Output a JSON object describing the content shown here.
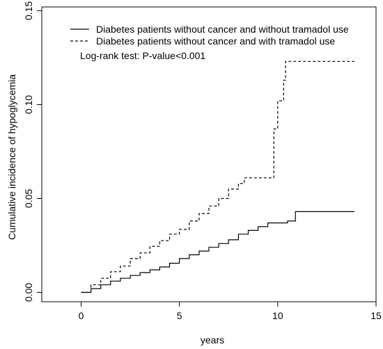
{
  "chart_data": {
    "type": "line",
    "xlabel": "years",
    "ylabel": "Cumulative incidence of hypoglycemia",
    "xlim": [
      -2,
      15
    ],
    "ylim": [
      -0.005,
      0.152
    ],
    "xticks": [
      0,
      5,
      10,
      15
    ],
    "yticks": [
      0.0,
      0.05,
      0.1,
      0.15
    ],
    "ytick_labels": [
      "0.00",
      "0.05",
      "0.10",
      "0.15"
    ],
    "grid": false,
    "legend_position": "top-left",
    "annotation": "Log-rank test: P-value<0.001",
    "series": [
      {
        "name": "Diabetes patients without cancer and without tramadol use",
        "style": "solid",
        "step": true,
        "x": [
          0,
          0.5,
          1,
          1.5,
          2,
          2.5,
          3,
          3.5,
          4,
          4.5,
          5,
          5.5,
          6,
          6.5,
          7,
          7.5,
          8,
          8.5,
          9,
          9.5,
          10,
          10.5,
          10.9,
          13.9
        ],
        "y": [
          0.0,
          0.002,
          0.004,
          0.006,
          0.0075,
          0.009,
          0.0105,
          0.012,
          0.0135,
          0.0155,
          0.018,
          0.02,
          0.022,
          0.024,
          0.026,
          0.028,
          0.031,
          0.033,
          0.035,
          0.037,
          0.037,
          0.038,
          0.043,
          0.043
        ]
      },
      {
        "name": "Diabetes patients without cancer and with tramadol use",
        "style": "dashed",
        "step": true,
        "x": [
          0,
          0.5,
          1,
          1.5,
          2,
          2.5,
          3,
          3.5,
          4,
          4.5,
          5,
          5.5,
          6,
          6.5,
          7,
          7.5,
          8,
          8.3,
          9,
          9.6,
          9.8,
          10,
          10.1,
          10.3,
          10.4,
          13.9
        ],
        "y": [
          0.0,
          0.004,
          0.0075,
          0.011,
          0.014,
          0.018,
          0.021,
          0.0245,
          0.0275,
          0.031,
          0.0335,
          0.038,
          0.042,
          0.046,
          0.05,
          0.055,
          0.058,
          0.061,
          0.061,
          0.061,
          0.087,
          0.102,
          0.102,
          0.113,
          0.123,
          0.123
        ]
      }
    ]
  }
}
